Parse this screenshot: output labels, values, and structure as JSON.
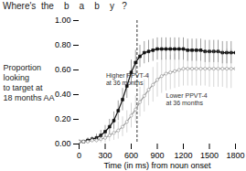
{
  "chart_data": {
    "type": "line",
    "title": "Where's  the    b    a    b    y   ?",
    "xlabel": "Time (in ms) from noun onset",
    "ylabel": "Proportion\nlooking\nto target at\n18 months AA",
    "x": [
      0,
      50,
      100,
      150,
      200,
      250,
      300,
      350,
      400,
      450,
      500,
      550,
      600,
      650,
      700,
      750,
      800,
      850,
      900,
      950,
      1000,
      1050,
      1100,
      1150,
      1200,
      1250,
      1300,
      1350,
      1400,
      1450,
      1500,
      1550,
      1600,
      1650,
      1700,
      1750,
      1800
    ],
    "series": [
      {
        "color": "#111111",
        "marker": "square",
        "line_style": "solid",
        "values": [
          0.02,
          0.02,
          0.03,
          0.04,
          0.05,
          0.07,
          0.1,
          0.14,
          0.19,
          0.27,
          0.36,
          0.47,
          0.58,
          0.66,
          0.71,
          0.74,
          0.75,
          0.76,
          0.77,
          0.77,
          0.77,
          0.77,
          0.77,
          0.77,
          0.77,
          0.76,
          0.76,
          0.76,
          0.76,
          0.75,
          0.75,
          0.75,
          0.75,
          0.74,
          0.74,
          0.74,
          0.74
        ],
        "errors": [
          0.01,
          0.01,
          0.02,
          0.02,
          0.03,
          0.04,
          0.05,
          0.06,
          0.07,
          0.08,
          0.09,
          0.1,
          0.1,
          0.1,
          0.09,
          0.09,
          0.09,
          0.09,
          0.09,
          0.09,
          0.09,
          0.09,
          0.09,
          0.09,
          0.09,
          0.09,
          0.09,
          0.09,
          0.09,
          0.09,
          0.09,
          0.09,
          0.09,
          0.09,
          0.09,
          0.09,
          0.1
        ]
      },
      {
        "color": "#999999",
        "marker": "circle",
        "line_style": "solid",
        "values": [
          0.02,
          0.02,
          0.02,
          0.03,
          0.03,
          0.04,
          0.05,
          0.07,
          0.09,
          0.11,
          0.14,
          0.18,
          0.23,
          0.28,
          0.34,
          0.39,
          0.44,
          0.48,
          0.52,
          0.55,
          0.57,
          0.58,
          0.59,
          0.6,
          0.61,
          0.61,
          0.61,
          0.61,
          0.61,
          0.61,
          0.61,
          0.61,
          0.61,
          0.61,
          0.61,
          0.61,
          0.61
        ],
        "errors": [
          0.01,
          0.01,
          0.01,
          0.02,
          0.02,
          0.03,
          0.04,
          0.05,
          0.06,
          0.07,
          0.08,
          0.09,
          0.1,
          0.11,
          0.12,
          0.13,
          0.13,
          0.14,
          0.14,
          0.14,
          0.14,
          0.14,
          0.14,
          0.14,
          0.14,
          0.14,
          0.14,
          0.14,
          0.14,
          0.14,
          0.15,
          0.15,
          0.15,
          0.15,
          0.16,
          0.16,
          0.17
        ]
      }
    ],
    "vline": 667,
    "annotations": [
      {
        "text": "Higher PPVT-4\nat 36 months",
        "x": 310,
        "y": 0.53
      },
      {
        "text": "Lower PPVT-4\nat 36 months",
        "x": 1000,
        "y": 0.36
      }
    ],
    "xlim": [
      0,
      1800
    ],
    "ylim": [
      0,
      1
    ],
    "xticks": [
      0,
      300,
      600,
      900,
      1200,
      1500,
      1800
    ],
    "yticks": [
      {
        "value": 0,
        "label": "0.00"
      },
      {
        "value": 0.2,
        "label": "0.20"
      },
      {
        "value": 0.4,
        "label": "0.40"
      },
      {
        "value": 0.6,
        "label": "0.60"
      },
      {
        "value": 0.8,
        "label": "0.80"
      },
      {
        "value": 1,
        "label": "1.00"
      }
    ],
    "grid": false
  }
}
